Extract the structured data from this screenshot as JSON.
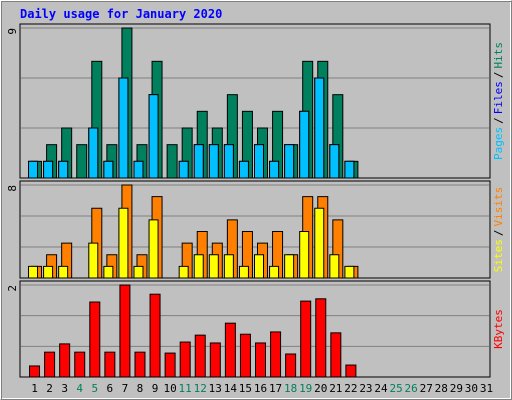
{
  "title": "Daily usage for January 2020",
  "title_color": "#0000ff",
  "legend_separator": "/",
  "chart_data": [
    {
      "type": "bar",
      "ylim": [
        0,
        9
      ],
      "yticks": [
        9
      ],
      "grid": true,
      "series": [
        {
          "name": "Hits",
          "color": "#00805c",
          "values": [
            1,
            2,
            3,
            2,
            7,
            2,
            9,
            2,
            7,
            2,
            3,
            4,
            3,
            5,
            4,
            3,
            4,
            2,
            7,
            7,
            5,
            1,
            0,
            0,
            0,
            0,
            0,
            0,
            0,
            0,
            0
          ]
        },
        {
          "name": "Files",
          "color": "#0000ff",
          "values": [
            1,
            1,
            1,
            0,
            3,
            1,
            6,
            1,
            5,
            0,
            1,
            2,
            2,
            2,
            1,
            2,
            1,
            2,
            4,
            6,
            2,
            1,
            0,
            0,
            0,
            0,
            0,
            0,
            0,
            0,
            0
          ]
        },
        {
          "name": "Pages",
          "color": "#00c0ff",
          "values": [
            1,
            1,
            1,
            0,
            3,
            1,
            6,
            1,
            5,
            0,
            1,
            2,
            2,
            2,
            1,
            2,
            1,
            2,
            4,
            6,
            2,
            1,
            0,
            0,
            0,
            0,
            0,
            0,
            0,
            0,
            0
          ]
        }
      ]
    },
    {
      "type": "bar",
      "ylim": [
        0,
        8
      ],
      "yticks": [
        8
      ],
      "grid": true,
      "series": [
        {
          "name": "Visits",
          "color": "#ff8000",
          "values": [
            1,
            2,
            3,
            0,
            6,
            2,
            8,
            2,
            7,
            0,
            3,
            4,
            3,
            5,
            4,
            3,
            4,
            2,
            7,
            7,
            5,
            1,
            0,
            0,
            0,
            0,
            0,
            0,
            0,
            0,
            0
          ]
        },
        {
          "name": "Sites",
          "color": "#ffff00",
          "values": [
            1,
            1,
            1,
            0,
            3,
            1,
            6,
            1,
            5,
            0,
            1,
            2,
            2,
            2,
            1,
            2,
            1,
            2,
            4,
            6,
            2,
            1,
            0,
            0,
            0,
            0,
            0,
            0,
            0,
            0,
            0
          ]
        }
      ]
    },
    {
      "type": "bar",
      "ylim": [
        0,
        2
      ],
      "yticks": [
        2
      ],
      "grid": true,
      "categories": [
        "1",
        "2",
        "3",
        "4",
        "5",
        "6",
        "7",
        "8",
        "9",
        "10",
        "11",
        "12",
        "13",
        "14",
        "15",
        "16",
        "17",
        "18",
        "19",
        "20",
        "21",
        "22",
        "23",
        "24",
        "25",
        "26",
        "27",
        "28",
        "29",
        "30",
        "31"
      ],
      "category_colors": [
        "#000000",
        "#000000",
        "#000000",
        "#00805c",
        "#00805c",
        "#000000",
        "#000000",
        "#000000",
        "#000000",
        "#000000",
        "#00805c",
        "#00805c",
        "#000000",
        "#000000",
        "#000000",
        "#000000",
        "#000000",
        "#00805c",
        "#00805c",
        "#000000",
        "#000000",
        "#000000",
        "#000000",
        "#000000",
        "#00805c",
        "#00805c",
        "#000000",
        "#000000",
        "#000000",
        "#000000",
        "#000000"
      ],
      "series": [
        {
          "name": "KBytes",
          "color": "#ff0000",
          "values": [
            0.24,
            0.54,
            0.72,
            0.54,
            1.63,
            0.54,
            2.0,
            0.54,
            1.8,
            0.52,
            0.76,
            0.91,
            0.74,
            1.17,
            0.93,
            0.74,
            0.98,
            0.5,
            1.65,
            1.7,
            0.96,
            0.26,
            0,
            0,
            0,
            0,
            0,
            0,
            0,
            0,
            0
          ]
        }
      ]
    }
  ]
}
